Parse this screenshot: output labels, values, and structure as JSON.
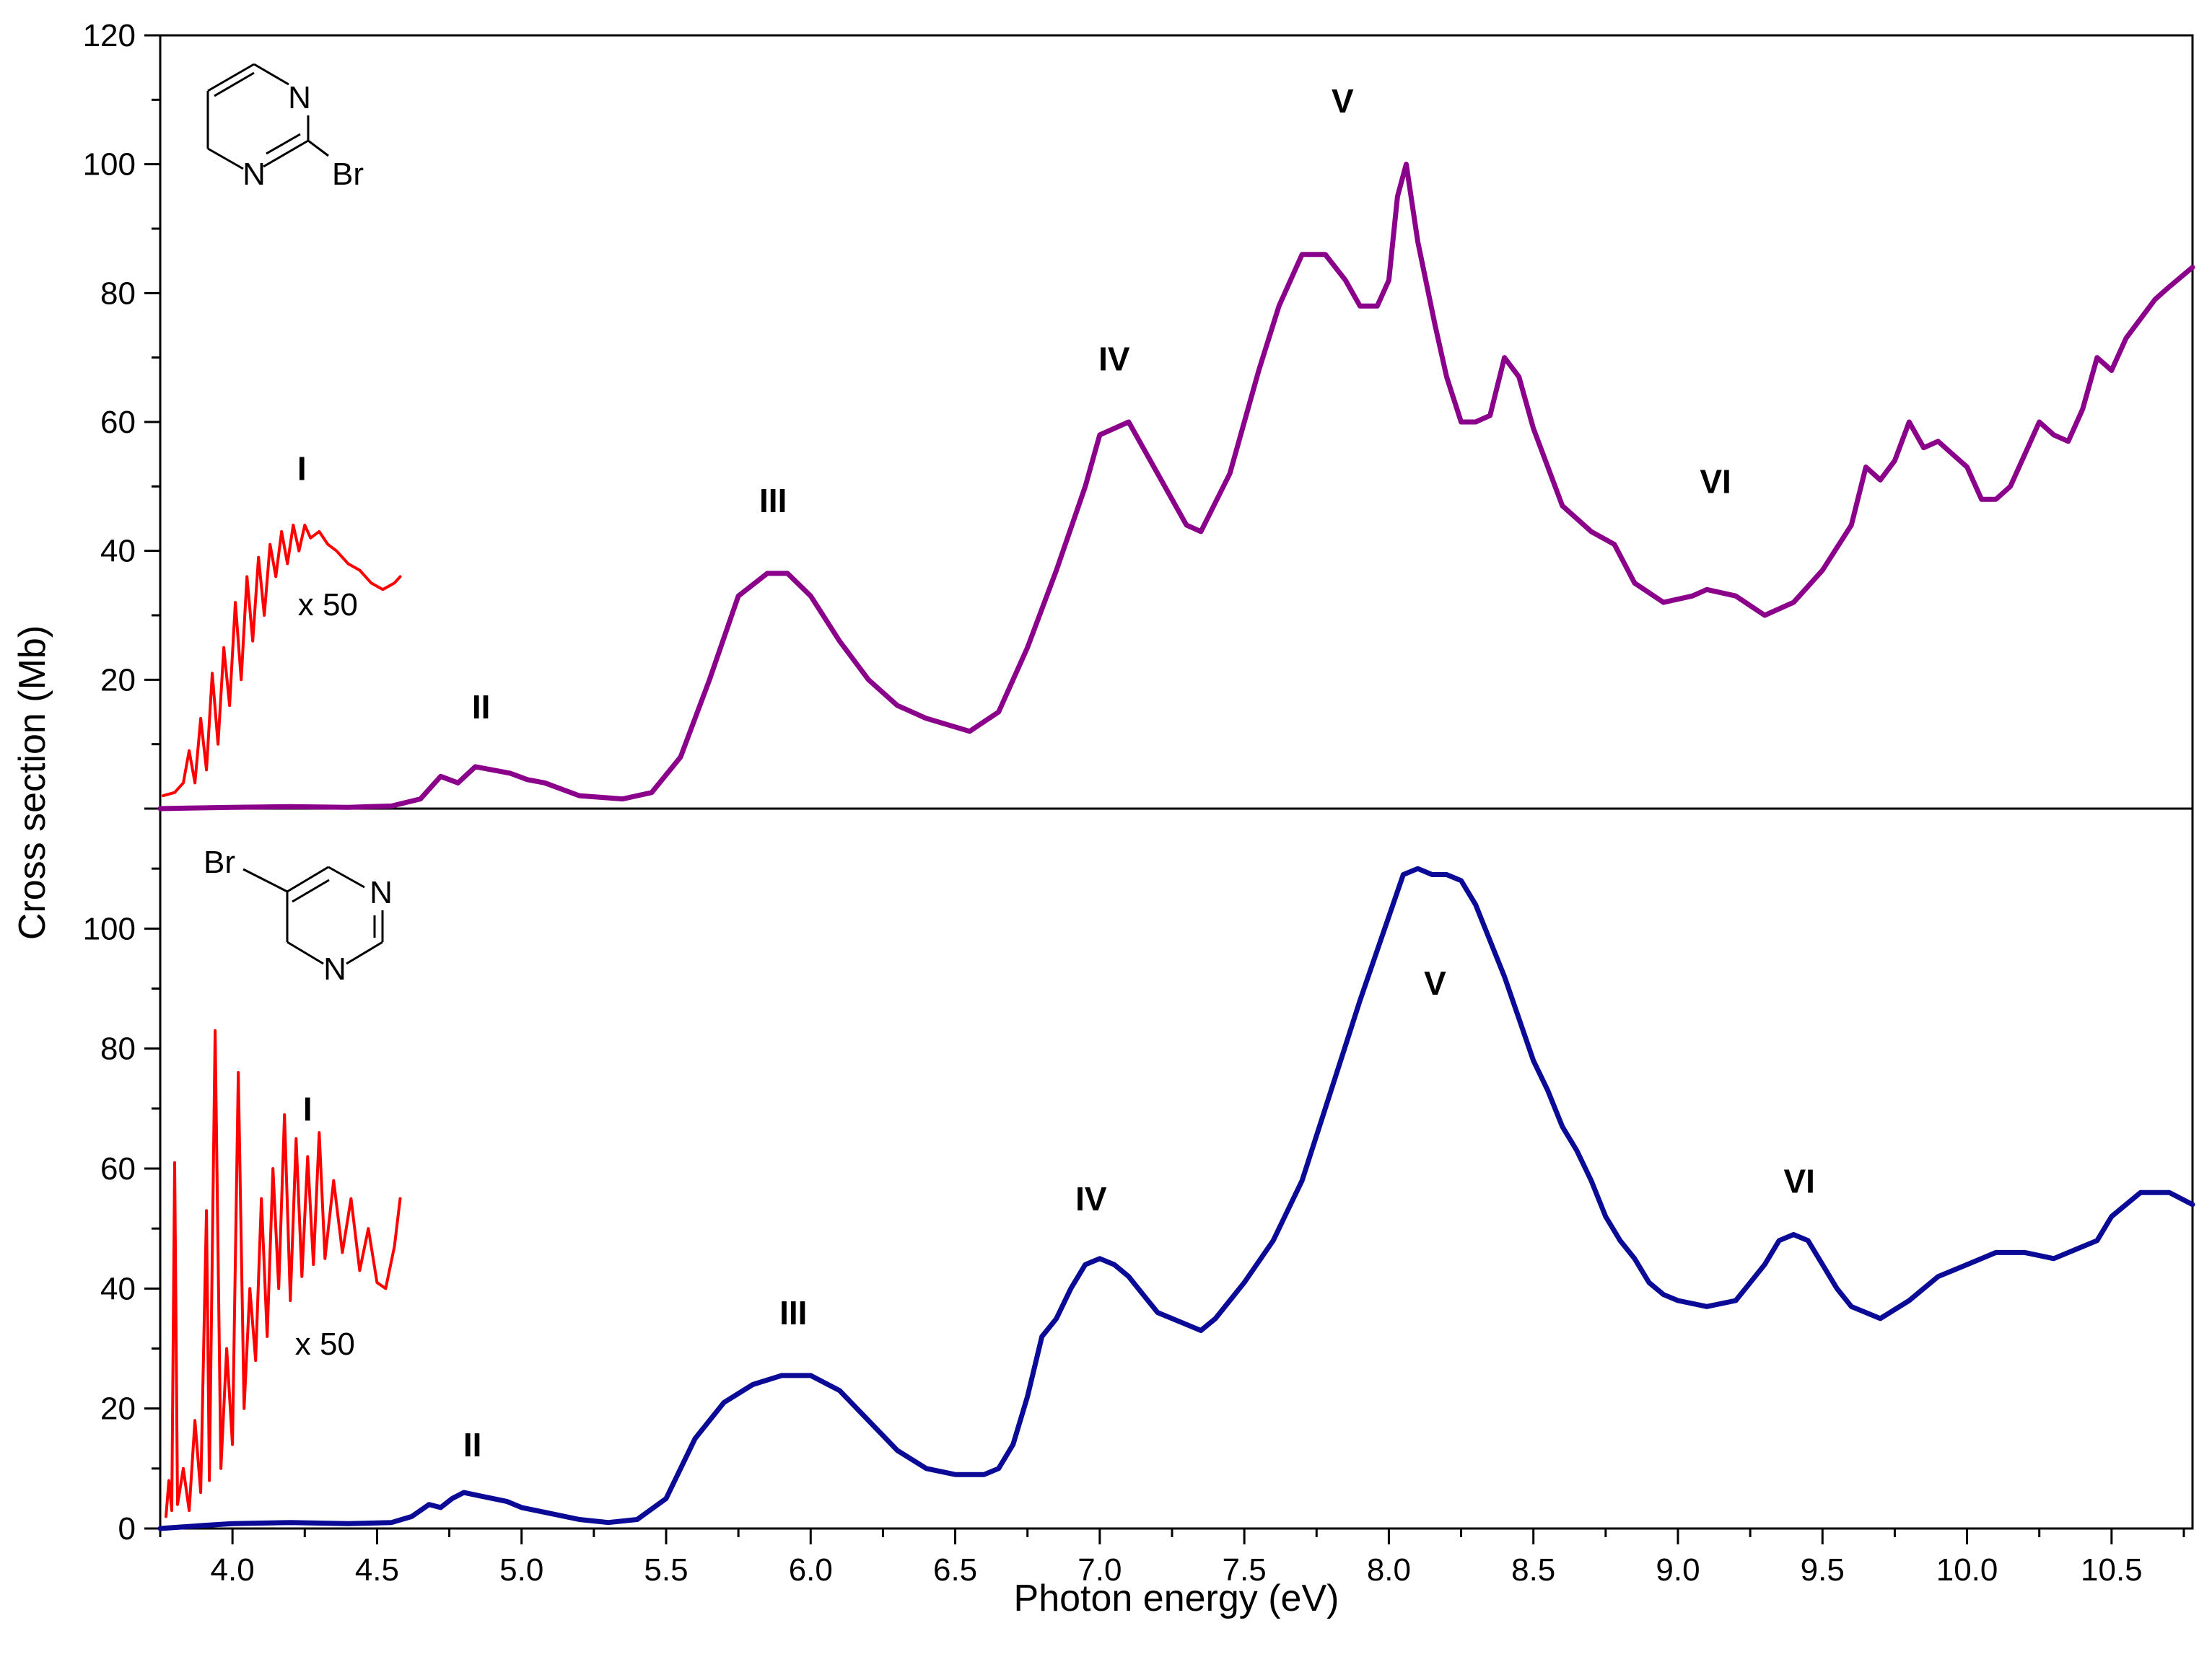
{
  "chart_data": {
    "type": "line",
    "title": "",
    "xlabel": "Photon energy (eV)",
    "ylabel": "Cross section (Mb)",
    "xlim": [
      3.75,
      10.78
    ],
    "x_ticks": [
      "4.0",
      "4.5",
      "5.0",
      "5.5",
      "6.0",
      "6.5",
      "7.0",
      "7.5",
      "8.0",
      "8.5",
      "9.0",
      "9.5",
      "10.0",
      "10.5"
    ],
    "grid": false,
    "panels": [
      {
        "position": "top",
        "molecule": "2-bromopyrimidine",
        "molecule_labels": [
          "N",
          "N",
          "Br"
        ],
        "ylim": [
          0,
          120
        ],
        "y_ticks": [
          "20",
          "40",
          "60",
          "80",
          "100",
          "120"
        ],
        "bands": [
          {
            "label": "I",
            "x": 4.24,
            "y": 51
          },
          {
            "label": "II",
            "x": 4.86,
            "y": 14
          },
          {
            "label": "III",
            "x": 5.87,
            "y": 46
          },
          {
            "label": "IV",
            "x": 7.05,
            "y": 68
          },
          {
            "label": "V",
            "x": 7.84,
            "y": 108
          },
          {
            "label": "VI",
            "x": 9.13,
            "y": 49
          }
        ],
        "inset_scale": {
          "label": "x 50",
          "x": 4.33,
          "y": 30
        },
        "series": [
          {
            "name": "2-bromopyrimidine",
            "color": "#8B008B",
            "x": [
              3.75,
              4.0,
              4.2,
              4.4,
              4.55,
              4.65,
              4.72,
              4.78,
              4.84,
              4.9,
              4.96,
              5.02,
              5.08,
              5.2,
              5.35,
              5.45,
              5.55,
              5.65,
              5.75,
              5.85,
              5.92,
              6.0,
              6.1,
              6.2,
              6.3,
              6.4,
              6.55,
              6.65,
              6.75,
              6.85,
              6.95,
              7.0,
              7.05,
              7.1,
              7.2,
              7.3,
              7.35,
              7.45,
              7.55,
              7.62,
              7.7,
              7.78,
              7.85,
              7.9,
              7.96,
              8.0,
              8.03,
              8.06,
              8.1,
              8.16,
              8.2,
              8.25,
              8.3,
              8.35,
              8.4,
              8.45,
              8.5,
              8.6,
              8.7,
              8.78,
              8.85,
              8.95,
              9.05,
              9.1,
              9.2,
              9.3,
              9.4,
              9.5,
              9.6,
              9.65,
              9.7,
              9.75,
              9.8,
              9.85,
              9.9,
              9.95,
              10.0,
              10.05,
              10.1,
              10.15,
              10.2,
              10.25,
              10.3,
              10.35,
              10.4,
              10.45,
              10.5,
              10.55,
              10.6,
              10.65,
              10.7,
              10.78
            ],
            "y": [
              0,
              0.2,
              0.3,
              0.2,
              0.4,
              1.5,
              5,
              4,
              6.5,
              6,
              5.5,
              4.5,
              4,
              2,
              1.5,
              2.5,
              8,
              20,
              33,
              36.5,
              36.5,
              33,
              26,
              20,
              16,
              14,
              12,
              15,
              25,
              37,
              50,
              58,
              59,
              60,
              52,
              44,
              43,
              52,
              68,
              78,
              86,
              86,
              82,
              78,
              78,
              82,
              95,
              100,
              88,
              75,
              67,
              60,
              60,
              61,
              70,
              67,
              59,
              47,
              43,
              41,
              35,
              32,
              33,
              34,
              33,
              30,
              32,
              37,
              44,
              53,
              51,
              54,
              60,
              56,
              57,
              55,
              53,
              48,
              48,
              50,
              55,
              60,
              58,
              57,
              62,
              70,
              68,
              73,
              76,
              79,
              81,
              84
            ]
          },
          {
            "name": "x 50",
            "color": "#FF0000",
            "x": [
              3.76,
              3.8,
              3.83,
              3.85,
              3.87,
              3.89,
              3.91,
              3.93,
              3.95,
              3.97,
              3.99,
              4.01,
              4.03,
              4.05,
              4.07,
              4.09,
              4.11,
              4.13,
              4.15,
              4.17,
              4.19,
              4.21,
              4.23,
              4.25,
              4.27,
              4.3,
              4.33,
              4.36,
              4.4,
              4.44,
              4.48,
              4.52,
              4.56,
              4.58
            ],
            "y": [
              2,
              2.5,
              4,
              9,
              4,
              14,
              6,
              21,
              10,
              25,
              16,
              32,
              20,
              36,
              26,
              39,
              30,
              41,
              36,
              43,
              38,
              44,
              40,
              44,
              42,
              43,
              41,
              40,
              38,
              37,
              35,
              34,
              35,
              36
            ]
          }
        ]
      },
      {
        "position": "bottom",
        "molecule": "5-bromopyrimidine",
        "molecule_labels": [
          "Br",
          "N",
          "N"
        ],
        "ylim": [
          0,
          120
        ],
        "y_ticks": [
          "0",
          "20",
          "40",
          "60",
          "80",
          "100"
        ],
        "bands": [
          {
            "label": "I",
            "x": 4.26,
            "y": 68
          },
          {
            "label": "II",
            "x": 4.83,
            "y": 12
          },
          {
            "label": "III",
            "x": 5.94,
            "y": 34
          },
          {
            "label": "IV",
            "x": 6.97,
            "y": 53
          },
          {
            "label": "V",
            "x": 8.16,
            "y": 89
          },
          {
            "label": "VI",
            "x": 9.42,
            "y": 56
          }
        ],
        "inset_scale": {
          "label": "x 50",
          "x": 4.32,
          "y": 29
        },
        "series": [
          {
            "name": "5-bromopyrimidine",
            "color": "#0A0A96",
            "x": [
              3.75,
              3.9,
              4.0,
              4.2,
              4.4,
              4.55,
              4.62,
              4.68,
              4.72,
              4.76,
              4.8,
              4.85,
              4.9,
              4.95,
              5.0,
              5.1,
              5.2,
              5.3,
              5.4,
              5.5,
              5.6,
              5.7,
              5.8,
              5.9,
              6.0,
              6.1,
              6.2,
              6.3,
              6.4,
              6.5,
              6.6,
              6.65,
              6.7,
              6.75,
              6.8,
              6.85,
              6.9,
              6.95,
              7.0,
              7.05,
              7.1,
              7.15,
              7.2,
              7.25,
              7.3,
              7.35,
              7.4,
              7.45,
              7.5,
              7.6,
              7.7,
              7.8,
              7.9,
              8.0,
              8.05,
              8.1,
              8.15,
              8.2,
              8.25,
              8.3,
              8.35,
              8.4,
              8.45,
              8.5,
              8.55,
              8.6,
              8.65,
              8.7,
              8.75,
              8.8,
              8.85,
              8.9,
              8.95,
              9.0,
              9.1,
              9.2,
              9.3,
              9.35,
              9.4,
              9.45,
              9.5,
              9.55,
              9.6,
              9.7,
              9.8,
              9.9,
              10.0,
              10.1,
              10.2,
              10.3,
              10.4,
              10.45,
              10.5,
              10.6,
              10.7,
              10.78
            ],
            "y": [
              0,
              0.5,
              0.8,
              1,
              0.8,
              1,
              2,
              4,
              3.5,
              5,
              6,
              5.5,
              5,
              4.5,
              3.5,
              2.5,
              1.5,
              1,
              1.5,
              5,
              15,
              21,
              24,
              25.5,
              25.5,
              23,
              18,
              13,
              10,
              9,
              9,
              10,
              14,
              22,
              32,
              35,
              40,
              44,
              45,
              44,
              42,
              39,
              36,
              35,
              34,
              33,
              35,
              38,
              41,
              48,
              58,
              73,
              88,
              102,
              109,
              110,
              109,
              109,
              108,
              104,
              98,
              92,
              85,
              78,
              73,
              67,
              63,
              58,
              52,
              48,
              45,
              41,
              39,
              38,
              37,
              38,
              44,
              48,
              49,
              48,
              44,
              40,
              37,
              35,
              38,
              42,
              44,
              46,
              46,
              45,
              47,
              48,
              52,
              56,
              56,
              54
            ]
          },
          {
            "name": "x 50",
            "color": "#FF0000",
            "x": [
              3.77,
              3.78,
              3.79,
              3.8,
              3.81,
              3.83,
              3.85,
              3.87,
              3.89,
              3.91,
              3.92,
              3.94,
              3.96,
              3.98,
              4.0,
              4.02,
              4.04,
              4.06,
              4.08,
              4.1,
              4.12,
              4.14,
              4.16,
              4.18,
              4.2,
              4.22,
              4.24,
              4.26,
              4.28,
              4.3,
              4.32,
              4.35,
              4.38,
              4.41,
              4.44,
              4.47,
              4.5,
              4.53,
              4.56,
              4.58
            ],
            "y": [
              2,
              8,
              3,
              61,
              4,
              10,
              3,
              18,
              6,
              53,
              8,
              83,
              10,
              30,
              14,
              76,
              20,
              40,
              28,
              55,
              32,
              60,
              40,
              69,
              38,
              65,
              42,
              62,
              44,
              66,
              45,
              58,
              46,
              55,
              43,
              50,
              41,
              40,
              47,
              55
            ]
          }
        ]
      }
    ]
  }
}
